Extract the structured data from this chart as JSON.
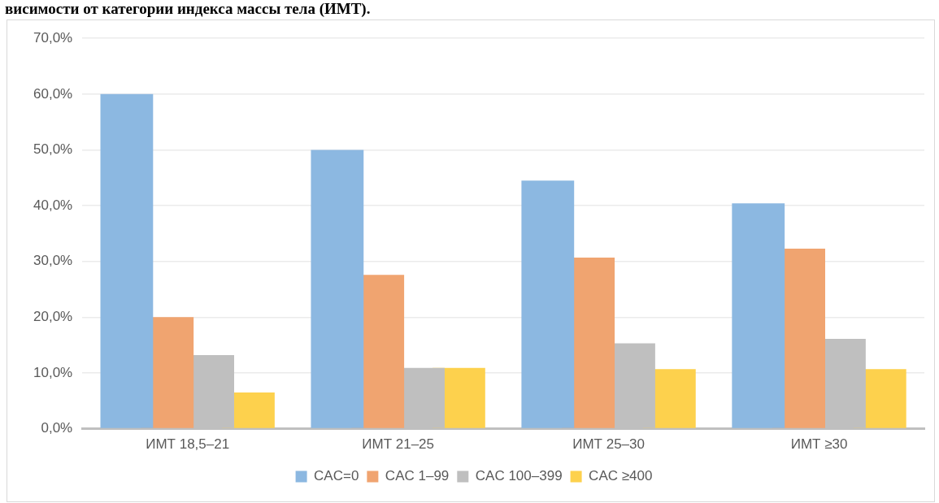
{
  "chart_data": {
    "type": "bar",
    "title": "висимости от категории индекса массы тела (ИМТ).",
    "categories": [
      "ИМТ 18,5–21",
      "ИМТ 21–25",
      "ИМТ 25–30",
      "ИМТ ≥30"
    ],
    "series": [
      {
        "name": "CAC=0",
        "color": "#8cb8e1",
        "values": [
          60,
          50,
          44.5,
          40.4
        ]
      },
      {
        "name": "CAC 1–99",
        "color": "#f0a470",
        "values": [
          20,
          27.6,
          30.7,
          32.3
        ]
      },
      {
        "name": "CAC 100–399",
        "color": "#bfbfbf",
        "values": [
          13.2,
          10.9,
          15.3,
          16.1
        ]
      },
      {
        "name": "CAC ≥400",
        "color": "#fdd14d",
        "values": [
          6.5,
          10.9,
          10.7,
          10.7
        ]
      }
    ],
    "ylim": [
      0,
      70
    ],
    "yticks": [
      {
        "value": 0,
        "label": "0,0%"
      },
      {
        "value": 10,
        "label": "10,0%"
      },
      {
        "value": 20,
        "label": "20,0%"
      },
      {
        "value": 30,
        "label": "30,0%"
      },
      {
        "value": 40,
        "label": "40,0%"
      },
      {
        "value": 50,
        "label": "50,0%"
      },
      {
        "value": 60,
        "label": "60,0%"
      },
      {
        "value": 70,
        "label": "70,0%"
      }
    ],
    "grid": "y",
    "legend": "bottom"
  }
}
